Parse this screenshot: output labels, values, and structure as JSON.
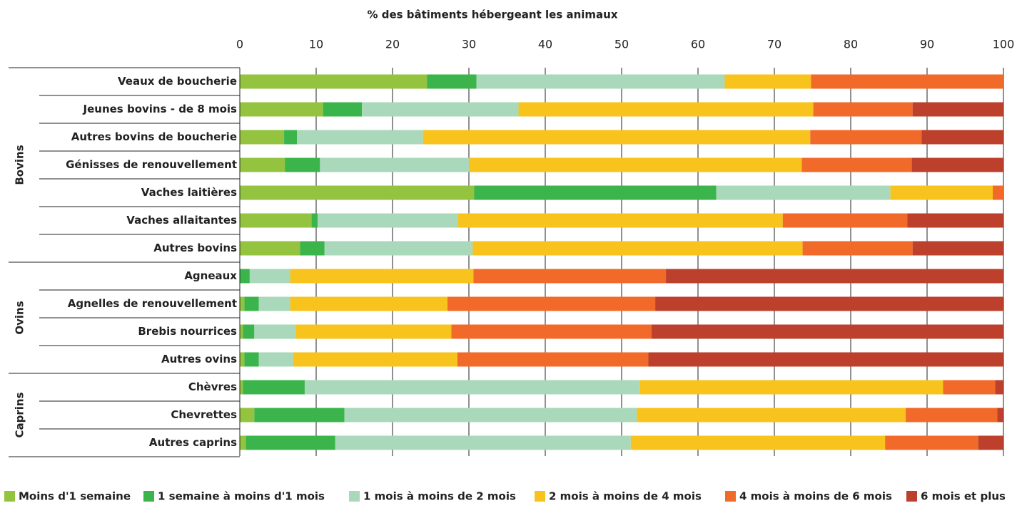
{
  "chart_data": {
    "type": "stacked_bar_horizontal",
    "title": "% des bâtiments hébergeant les animaux",
    "groups": [
      {
        "name": "Bovins",
        "categories": [
          "Veaux de boucherie",
          "Jeunes bovins - de 8 mois",
          "Autres bovins de boucherie",
          "Génisses de renouvellement",
          "Vaches laitières",
          "Vaches allaitantes",
          "Autres bovins"
        ]
      },
      {
        "name": "Ovins",
        "categories": [
          "Agneaux",
          "Agnelles de renouvellement",
          "Brebis nourrices",
          "Autres ovins"
        ]
      },
      {
        "name": "Caprins",
        "categories": [
          "Chèvres",
          "Chevrettes",
          "Autres caprins"
        ]
      }
    ],
    "series": [
      {
        "name": "Moins d'1 semaine",
        "color": "#94c43f",
        "values": [
          24.5,
          10.9,
          5.8,
          5.9,
          30.7,
          9.4,
          7.9,
          0,
          0.6,
          0.4,
          0.6,
          0.4,
          1.9,
          0.8
        ]
      },
      {
        "name": "1 semaine à moins d'1 mois",
        "color": "#3bb54b",
        "values": [
          6.5,
          5.1,
          1.7,
          4.6,
          31.7,
          0.8,
          3.2,
          1.3,
          1.9,
          1.5,
          1.9,
          8.1,
          11.8,
          11.7
        ]
      },
      {
        "name": "1 mois à moins de 2 mois",
        "color": "#a9d8ba",
        "values": [
          32.5,
          20.5,
          16.5,
          19.5,
          22.8,
          18.4,
          19.4,
          5.3,
          4.1,
          5.4,
          4.5,
          43.9,
          38.3,
          38.7
        ]
      },
      {
        "name": "2 mois à moins de 4 mois",
        "color": "#f7c31c",
        "values": [
          11.3,
          38.6,
          50.7,
          43.6,
          13.4,
          42.5,
          43.2,
          24.0,
          20.6,
          20.4,
          21.5,
          39.7,
          35.2,
          33.3
        ]
      },
      {
        "name": "4 mois à moins de 6 mois",
        "color": "#f26a2a",
        "values": [
          25.2,
          13.0,
          14.6,
          14.4,
          1.4,
          16.3,
          14.4,
          25.2,
          27.2,
          26.2,
          25.0,
          6.8,
          12.0,
          12.2
        ]
      },
      {
        "name": "6 mois et plus",
        "color": "#bc402b",
        "values": [
          0,
          11.9,
          10.7,
          12.0,
          0,
          12.6,
          11.9,
          44.2,
          45.6,
          46.1,
          46.5,
          1.1,
          0.8,
          3.3
        ]
      }
    ],
    "xlim": [
      0,
      100
    ],
    "xticks": [
      0,
      10,
      20,
      30,
      40,
      50,
      60,
      70,
      80,
      90,
      100
    ],
    "grid": true
  }
}
